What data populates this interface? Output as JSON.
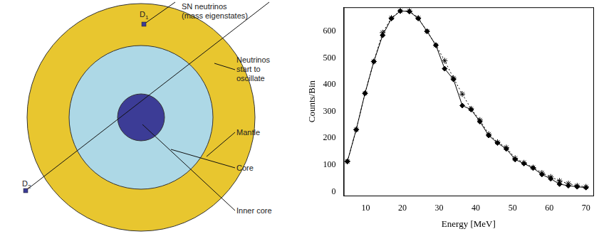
{
  "diagram": {
    "detectors": [
      {
        "label": "D",
        "sub": "1"
      },
      {
        "label": "D",
        "sub": "2"
      }
    ],
    "labels": {
      "neutrinos": [
        "SN neutrinos",
        "(mass eigenstates)"
      ],
      "oscillate": [
        "Neutrinos",
        "start to",
        "oscillate"
      ],
      "mantle": "Mantle",
      "core": "Core",
      "inner_core": "Inner core"
    }
  },
  "chart_data": {
    "type": "line",
    "x_label": "Energy [MeV]",
    "y_label": "Counts/Bin",
    "x": [
      5,
      7.4,
      9.8,
      12.2,
      14.6,
      17.0,
      19.4,
      21.9,
      24.3,
      26.7,
      29.1,
      31.5,
      33.9,
      36.3,
      38.7,
      41.1,
      43.5,
      45.9,
      48.3,
      50.7,
      53.1,
      55.6,
      58.0,
      60.4,
      62.8,
      65.2,
      67.6,
      70.0
    ],
    "series": [
      {
        "color": "#000000",
        "marker": "diamond",
        "line_style": "solid",
        "values": [
          113,
          232,
          368,
          487,
          585,
          648,
          676,
          674,
          648,
          600,
          548,
          460,
          420,
          322,
          307,
          262,
          210,
          182,
          160,
          120,
          105,
          88,
          64,
          48,
          28,
          22,
          18,
          15
        ]
      },
      {
        "color": "#000000",
        "marker": "star",
        "line_style": "dotted",
        "values": [
          113,
          232,
          368,
          487,
          595,
          650,
          676,
          676,
          650,
          600,
          548,
          490,
          425,
          365,
          310,
          268,
          215,
          185,
          165,
          125,
          108,
          90,
          70,
          55,
          40,
          30,
          22,
          18
        ]
      }
    ],
    "xlim": [
      4,
      72
    ],
    "ylim": [
      -15,
      690
    ],
    "xticks": [
      10,
      20,
      30,
      40,
      50,
      60,
      70
    ],
    "yticks": [
      0,
      100,
      200,
      300,
      400,
      500,
      600
    ],
    "grid": false
  }
}
